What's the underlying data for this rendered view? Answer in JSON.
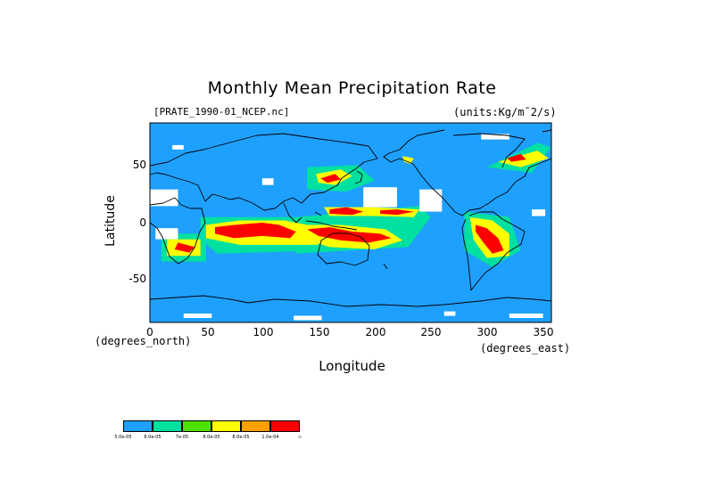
{
  "title": "Monthly Mean Precipitation Rate",
  "source_label": "[PRATE_1990-01_NCEP.nc]",
  "units_label": "(units:Kg/m¯2/s)",
  "chart_data": {
    "type": "heatmap",
    "title": "Monthly Mean Precipitation Rate",
    "xlabel": "Longitude",
    "ylabel": "Latitude",
    "x_unit": "(degrees_east)",
    "y_unit": "(degrees_north)",
    "xlim": [
      0,
      357.5
    ],
    "ylim": [
      -90,
      90
    ],
    "xticks": [
      0,
      50,
      100,
      150,
      200,
      250,
      300,
      350
    ],
    "yticks": [
      50,
      0,
      -50
    ],
    "background_color": "#1ea0ff",
    "legend": {
      "colors": [
        "#1ea0ff",
        "#00e0a0",
        "#50e000",
        "#ffff00",
        "#ffa000",
        "#ff0000"
      ],
      "labels": [
        "5.0e-05",
        "8.0e-05",
        "7e-05",
        "8.0e-05",
        "8.0e-05",
        "1.0e-04",
        "∞"
      ]
    },
    "regions": [
      {
        "level": 5,
        "points": [
          [
            58,
            -4
          ],
          [
            75,
            -2
          ],
          [
            100,
            0
          ],
          [
            115,
            -2
          ],
          [
            130,
            -8
          ],
          [
            125,
            -14
          ],
          [
            100,
            -12
          ],
          [
            75,
            -14
          ],
          [
            58,
            -10
          ]
        ]
      },
      {
        "level": 5,
        "points": [
          [
            140,
            -6
          ],
          [
            160,
            -4
          ],
          [
            180,
            -8
          ],
          [
            205,
            -10
          ],
          [
            215,
            -14
          ],
          [
            195,
            -18
          ],
          [
            170,
            -16
          ],
          [
            150,
            -12
          ]
        ]
      },
      {
        "level": 5,
        "points": [
          [
            160,
            8
          ],
          [
            180,
            7
          ],
          [
            190,
            10
          ],
          [
            175,
            14
          ],
          [
            160,
            12
          ]
        ]
      },
      {
        "level": 5,
        "points": [
          [
            205,
            8
          ],
          [
            220,
            7
          ],
          [
            235,
            10
          ],
          [
            220,
            12
          ],
          [
            205,
            11
          ]
        ]
      },
      {
        "level": 5,
        "points": [
          [
            290,
            -2
          ],
          [
            300,
            -5
          ],
          [
            310,
            -14
          ],
          [
            315,
            -25
          ],
          [
            305,
            -28
          ],
          [
            297,
            -18
          ],
          [
            290,
            -8
          ]
        ]
      },
      {
        "level": 5,
        "points": [
          [
            152,
            40
          ],
          [
            165,
            44
          ],
          [
            170,
            39
          ],
          [
            158,
            36
          ]
        ]
      },
      {
        "level": 5,
        "points": [
          [
            318,
            58
          ],
          [
            330,
            62
          ],
          [
            335,
            57
          ],
          [
            322,
            55
          ]
        ]
      },
      {
        "level": 5,
        "points": [
          [
            25,
            -18
          ],
          [
            40,
            -22
          ],
          [
            35,
            -27
          ],
          [
            22,
            -24
          ]
        ]
      },
      {
        "level": 3,
        "points": [
          [
            50,
            -2
          ],
          [
            80,
            2
          ],
          [
            120,
            2
          ],
          [
            140,
            -2
          ],
          [
            150,
            -20
          ],
          [
            120,
            -20
          ],
          [
            80,
            -20
          ],
          [
            50,
            -14
          ]
        ]
      },
      {
        "level": 3,
        "points": [
          [
            135,
            -2
          ],
          [
            170,
            -2
          ],
          [
            210,
            -6
          ],
          [
            225,
            -16
          ],
          [
            200,
            -24
          ],
          [
            160,
            -22
          ],
          [
            135,
            -14
          ]
        ]
      },
      {
        "level": 3,
        "points": [
          [
            148,
            44
          ],
          [
            170,
            48
          ],
          [
            180,
            42
          ],
          [
            165,
            34
          ],
          [
            150,
            36
          ]
        ]
      },
      {
        "level": 3,
        "points": [
          [
            155,
            14
          ],
          [
            200,
            14
          ],
          [
            240,
            12
          ],
          [
            235,
            5
          ],
          [
            200,
            6
          ],
          [
            160,
            6
          ]
        ]
      },
      {
        "level": 3,
        "points": [
          [
            285,
            5
          ],
          [
            305,
            2
          ],
          [
            320,
            -10
          ],
          [
            320,
            -30
          ],
          [
            300,
            -32
          ],
          [
            288,
            -15
          ]
        ]
      },
      {
        "level": 3,
        "points": [
          [
            310,
            55
          ],
          [
            345,
            65
          ],
          [
            355,
            58
          ],
          [
            330,
            50
          ]
        ]
      },
      {
        "level": 3,
        "points": [
          [
            15,
            -15
          ],
          [
            45,
            -15
          ],
          [
            45,
            -30
          ],
          [
            15,
            -30
          ]
        ]
      },
      {
        "level": 3,
        "points": [
          [
            225,
            60
          ],
          [
            235,
            58
          ],
          [
            232,
            53
          ],
          [
            226,
            55
          ]
        ]
      },
      {
        "level": 1,
        "points": [
          [
            45,
            5
          ],
          [
            130,
            5
          ],
          [
            155,
            0
          ],
          [
            160,
            -25
          ],
          [
            60,
            -28
          ],
          [
            45,
            -15
          ]
        ]
      },
      {
        "level": 1,
        "points": [
          [
            130,
            5
          ],
          [
            240,
            15
          ],
          [
            250,
            5
          ],
          [
            230,
            -22
          ],
          [
            130,
            -28
          ]
        ]
      },
      {
        "level": 1,
        "points": [
          [
            140,
            50
          ],
          [
            185,
            52
          ],
          [
            200,
            38
          ],
          [
            175,
            28
          ],
          [
            140,
            30
          ]
        ]
      },
      {
        "level": 1,
        "points": [
          [
            280,
            10
          ],
          [
            320,
            5
          ],
          [
            330,
            -25
          ],
          [
            305,
            -40
          ],
          [
            280,
            -25
          ]
        ]
      },
      {
        "level": 1,
        "points": [
          [
            300,
            50
          ],
          [
            345,
            72
          ],
          [
            357,
            68
          ],
          [
            340,
            45
          ]
        ]
      },
      {
        "level": 1,
        "points": [
          [
            10,
            -10
          ],
          [
            50,
            -10
          ],
          [
            50,
            -35
          ],
          [
            10,
            -35
          ]
        ]
      }
    ],
    "white_patches": [
      [
        0,
        30,
        25,
        15
      ],
      [
        190,
        32,
        30,
        18
      ],
      [
        240,
        30,
        20,
        20
      ],
      [
        5,
        -5,
        20,
        10
      ],
      [
        20,
        70,
        10,
        4
      ],
      [
        295,
        80,
        25,
        5
      ],
      [
        340,
        12,
        12,
        6
      ],
      [
        100,
        40,
        10,
        6
      ],
      [
        30,
        -82,
        25,
        4
      ],
      [
        128,
        -84,
        25,
        4
      ],
      [
        262,
        -80,
        10,
        4
      ],
      [
        320,
        -82,
        30,
        4
      ]
    ]
  }
}
